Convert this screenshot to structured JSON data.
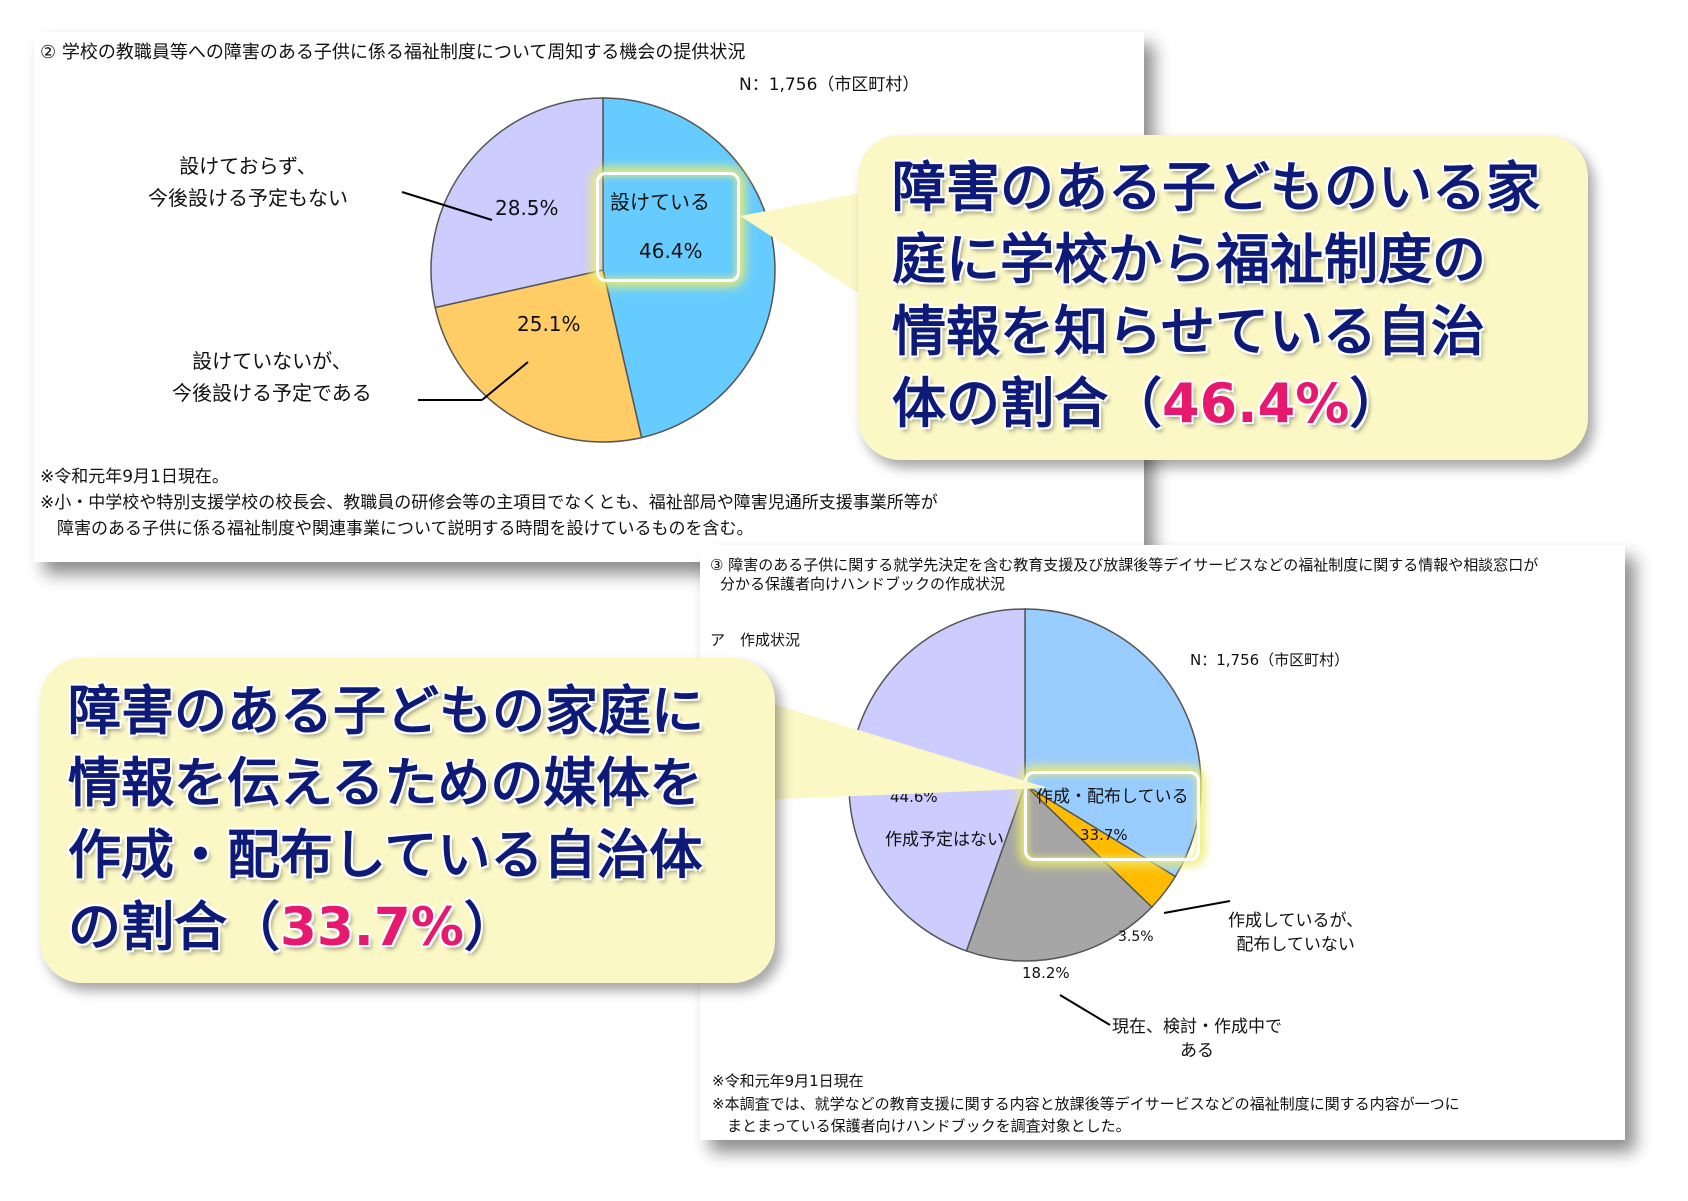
{
  "panel1": {
    "title": "② 学校の教職員等への障害のある子供に係る福祉制度について周知する機会の提供状況",
    "n_label": "N：1,756（市区町村）",
    "notes": [
      "※令和元年9月1日現在。",
      "※小・中学校や特別支援学校の校長会、教職員の研修会等の主項目でなくとも、福祉部局や障害児通所支援事業所等が",
      "　障害のある子供に係る福祉制度や関連事業について説明する時間を設けているものを含む。"
    ],
    "label_a_line1": "設けておらず、",
    "label_a_line2": "今後設ける予定もない",
    "label_b_line1": "設けていないが、",
    "label_b_line2": "今後設ける予定である",
    "label_c": "設けている",
    "pct_c": "46.4%",
    "pct_a": "28.5%",
    "pct_b": "25.1%"
  },
  "panel2": {
    "title_line1": "③ 障害のある子供に関する就学先決定を含む教育支援及び放課後等デイサービスなどの福祉制度に関する情報や相談窓口が",
    "title_line2": "分かる保護者向けハンドブックの作成状況",
    "subtitle": "ア　作成状況",
    "n_label": "N：1,756（市区町村）",
    "label_a": "作成・配布している",
    "pct_a": "33.7%",
    "label_b_line1": "作成しているが、",
    "label_b_line2": "配布していない",
    "pct_b": "3.5%",
    "label_c_line1": "現在、検討・作成中で",
    "label_c_line2": "ある",
    "pct_c": "18.2%",
    "label_d": "作成予定はない",
    "pct_d": "44.6%",
    "notes": [
      "※令和元年9月1日現在",
      "※本調査では、就学などの教育支援に関する内容と放課後等デイサービスなどの福祉制度に関する内容が一つに",
      "　まとまっている保護者向けハンドブックを調査対象とした。"
    ]
  },
  "callout1": {
    "lines": [
      "障害のある子どものいる家",
      "庭に学校から福祉制度の",
      "情報を知らせている自治",
      "体の割合（"
    ],
    "highlight": "46.4%",
    "close": "）"
  },
  "callout2": {
    "lines": [
      "障害のある子どもの家庭に",
      "情報を伝えるための媒体を",
      "作成・配布している自治体",
      "の割合（"
    ],
    "highlight": "33.7%",
    "close": "）"
  },
  "colors": {
    "blue": "#66ccff",
    "lavender": "#ccccff",
    "orange": "#ffcc66",
    "gold": "#ffbb00",
    "gray": "#a6a6a6",
    "callout_bg": "#fbf8c6",
    "callout_text": "#0d1a78",
    "highlight": "#e6196e"
  },
  "chart_data": [
    {
      "type": "pie",
      "title": "② 学校の教職員等への障害のある子供に係る福祉制度について周知する機会の提供状況",
      "labels": [
        "設けている",
        "設けていないが、今後設ける予定である",
        "設けておらず、今後設ける予定もない"
      ],
      "values": [
        46.4,
        25.1,
        28.5
      ],
      "colors": [
        "#66ccff",
        "#ffcc66",
        "#ccccff"
      ]
    },
    {
      "type": "pie",
      "title": "ア　作成状況",
      "labels": [
        "作成・配布している",
        "作成しているが、配布していない",
        "現在、検討・作成中である",
        "作成予定はない"
      ],
      "values": [
        33.7,
        3.5,
        18.2,
        44.6
      ],
      "colors": [
        "#99ccff",
        "#ffbb00",
        "#a6a6a6",
        "#ccccff"
      ]
    }
  ]
}
